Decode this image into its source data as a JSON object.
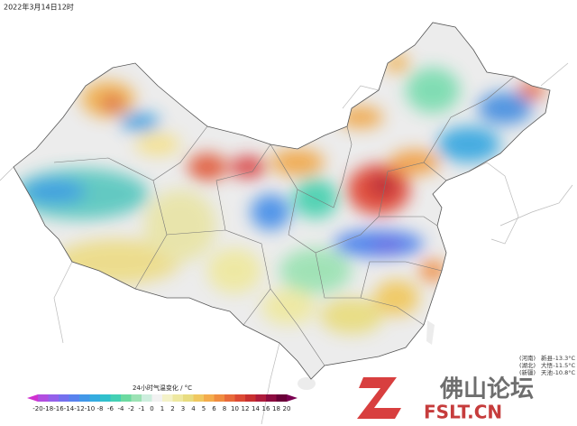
{
  "header": {
    "title": "2022年3月14日12时"
  },
  "colorbar": {
    "label": "24小时气温变化 / °C",
    "ticks": [
      -20,
      -18,
      -16,
      -14,
      -12,
      -10,
      -8,
      -6,
      -4,
      -2,
      -1,
      0,
      1,
      2,
      3,
      4,
      5,
      6,
      8,
      10,
      12,
      14,
      16,
      18,
      20
    ],
    "colors": [
      "#d030d0",
      "#b24ee0",
      "#9460ea",
      "#7470ee",
      "#5882ee",
      "#4298e8",
      "#34ace0",
      "#30c0cc",
      "#44d0b4",
      "#6cdaa0",
      "#9ce2b4",
      "#cdeede",
      "#f2f2f2",
      "#f4f2c8",
      "#eee8a0",
      "#e8dc80",
      "#f0c860",
      "#f4ac4c",
      "#f08c40",
      "#e86a3a",
      "#dc4a34",
      "#c83030",
      "#ae1c3c",
      "#8c0c40",
      "#6a0038",
      "#7a0050"
    ]
  },
  "stations": [
    {
      "region": "(河南)",
      "name": "新县",
      "value": "-13.3°C"
    },
    {
      "region": "(湖北)",
      "name": "大悟",
      "value": "-11.5°C"
    },
    {
      "region": "(新疆)",
      "name": "天池",
      "value": "-10.8°C"
    }
  ],
  "watermark": {
    "cn": "佛山论坛",
    "en": "FSLT.CN"
  }
}
